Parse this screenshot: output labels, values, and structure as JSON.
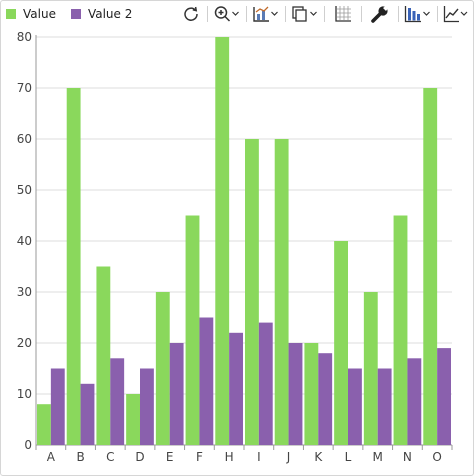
{
  "legend": [
    {
      "label": "Value",
      "color": "#8ad85c"
    },
    {
      "label": "Value 2",
      "color": "#8a60ad"
    }
  ],
  "toolbar": {
    "icons": [
      "reset-rotate-icon",
      "zoom-icon",
      "chart-type-icon",
      "copy-icon",
      "grid-icon",
      "wrench-icon",
      "bar-chart-icon",
      "trend-line-icon"
    ]
  },
  "chart_data": {
    "type": "bar",
    "categories": [
      "A",
      "B",
      "C",
      "D",
      "E",
      "F",
      "H",
      "I",
      "J",
      "K",
      "L",
      "M",
      "N",
      "O"
    ],
    "series": [
      {
        "name": "Value",
        "color": "#8ad85c",
        "values": [
          8,
          70,
          35,
          10,
          30,
          45,
          80,
          60,
          60,
          20,
          40,
          30,
          45,
          70
        ]
      },
      {
        "name": "Value 2",
        "color": "#8a60ad",
        "values": [
          15,
          12,
          17,
          15,
          20,
          25,
          22,
          24,
          20,
          18,
          15,
          15,
          17,
          19
        ]
      }
    ],
    "yticks": [
      "0",
      "10",
      "20",
      "30",
      "40",
      "50",
      "60",
      "70",
      "80"
    ],
    "ylim": [
      0,
      80
    ],
    "grid": true,
    "legend_position": "top-left"
  }
}
